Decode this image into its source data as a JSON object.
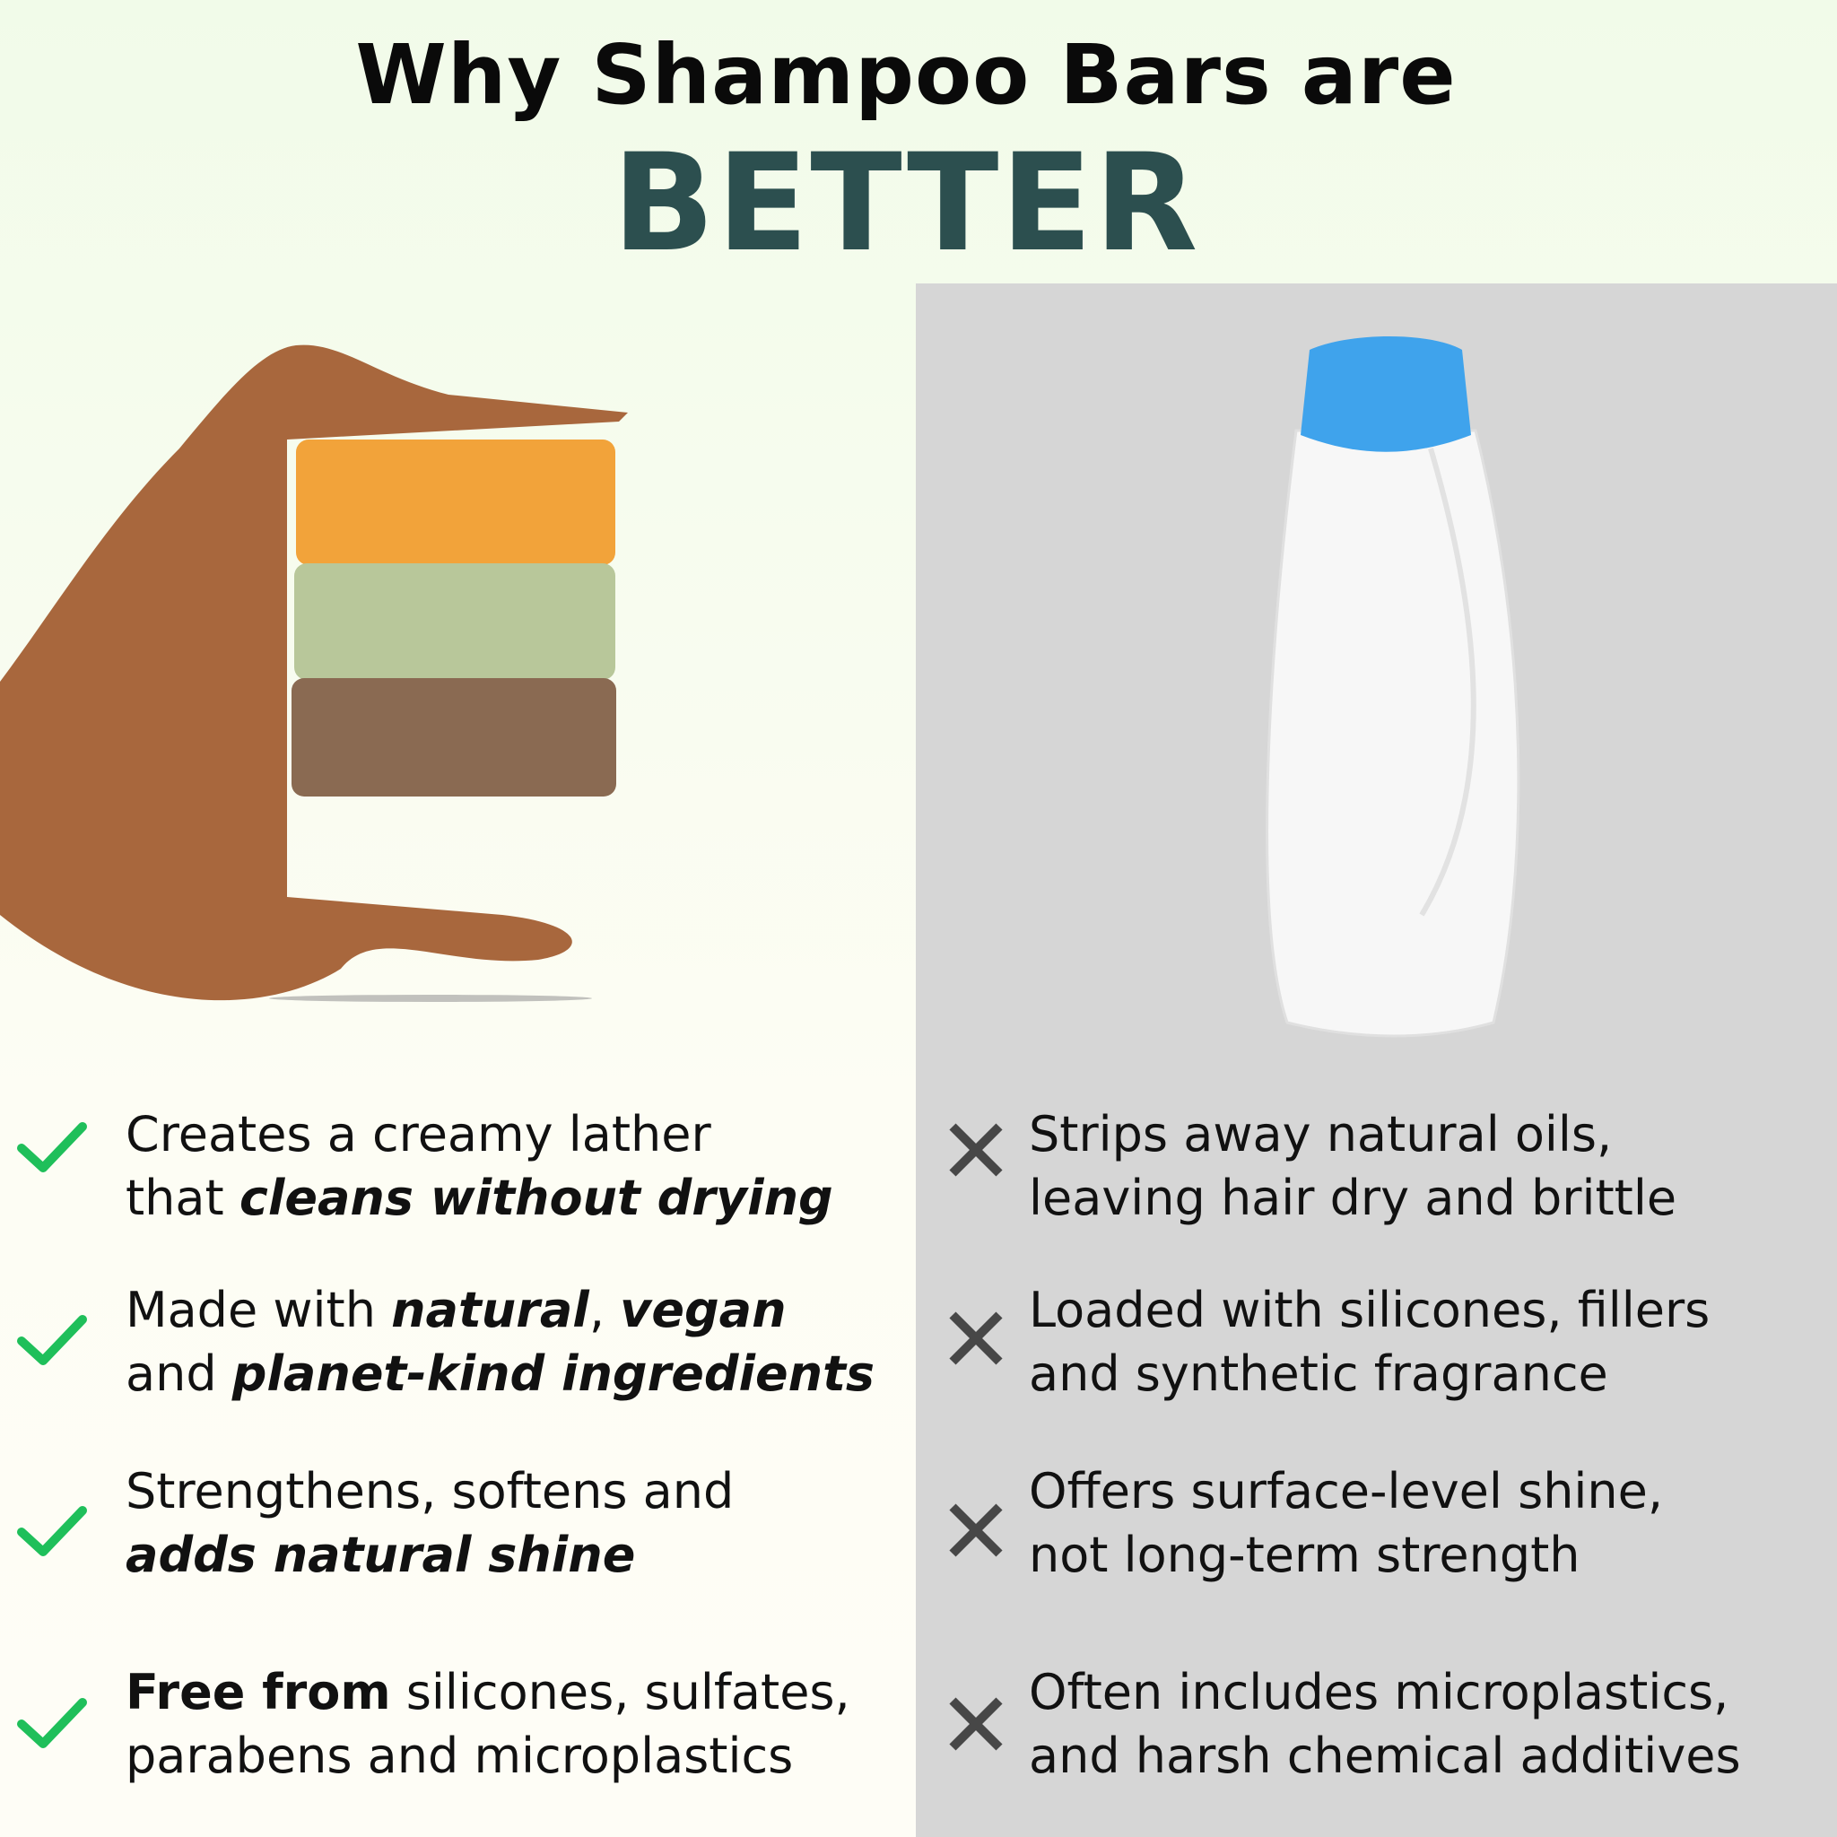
{
  "header": {
    "title": "Why Shampoo Bars are",
    "emphasis": "BETTER"
  },
  "colors": {
    "emphasis": "#2c4f4f",
    "check": "#1fbf5a",
    "cross": "#474747",
    "right_panel": "#d6d6d6"
  },
  "left": {
    "image": "hand-holding-shampoo-bars",
    "items": [
      {
        "icon": "check-icon",
        "l1": "Creates a creamy lather",
        "l2a": "that ",
        "l2b": "cleans without drying"
      },
      {
        "icon": "check-icon",
        "l1a": "Made with ",
        "l1b": "natural",
        ",": ",",
        "l1c": " ",
        "l1d": "vegan",
        "l2a": "and ",
        "l2b": "planet-kind ingredients"
      },
      {
        "icon": "check-icon",
        "l1": "Strengthens, softens and",
        "l2b": "adds natural shine"
      },
      {
        "icon": "check-icon",
        "l1b": "Free from",
        "l1a": " silicones, sulfates,",
        "l2": "parabens and microplastics"
      }
    ]
  },
  "right": {
    "image": "plastic-shampoo-bottle",
    "items": [
      {
        "icon": "x-icon",
        "l1": "Strips away natural oils,",
        "l2": "leaving hair dry and brittle"
      },
      {
        "icon": "x-icon",
        "l1": "Loaded with silicones, fillers",
        "l2": "and synthetic fragrance"
      },
      {
        "icon": "x-icon",
        "l1": "Offers surface-level shine,",
        "l2": "not long-term strength"
      },
      {
        "icon": "x-icon",
        "l1": "Often includes microplastics,",
        "l2": "and harsh chemical additives"
      }
    ]
  }
}
